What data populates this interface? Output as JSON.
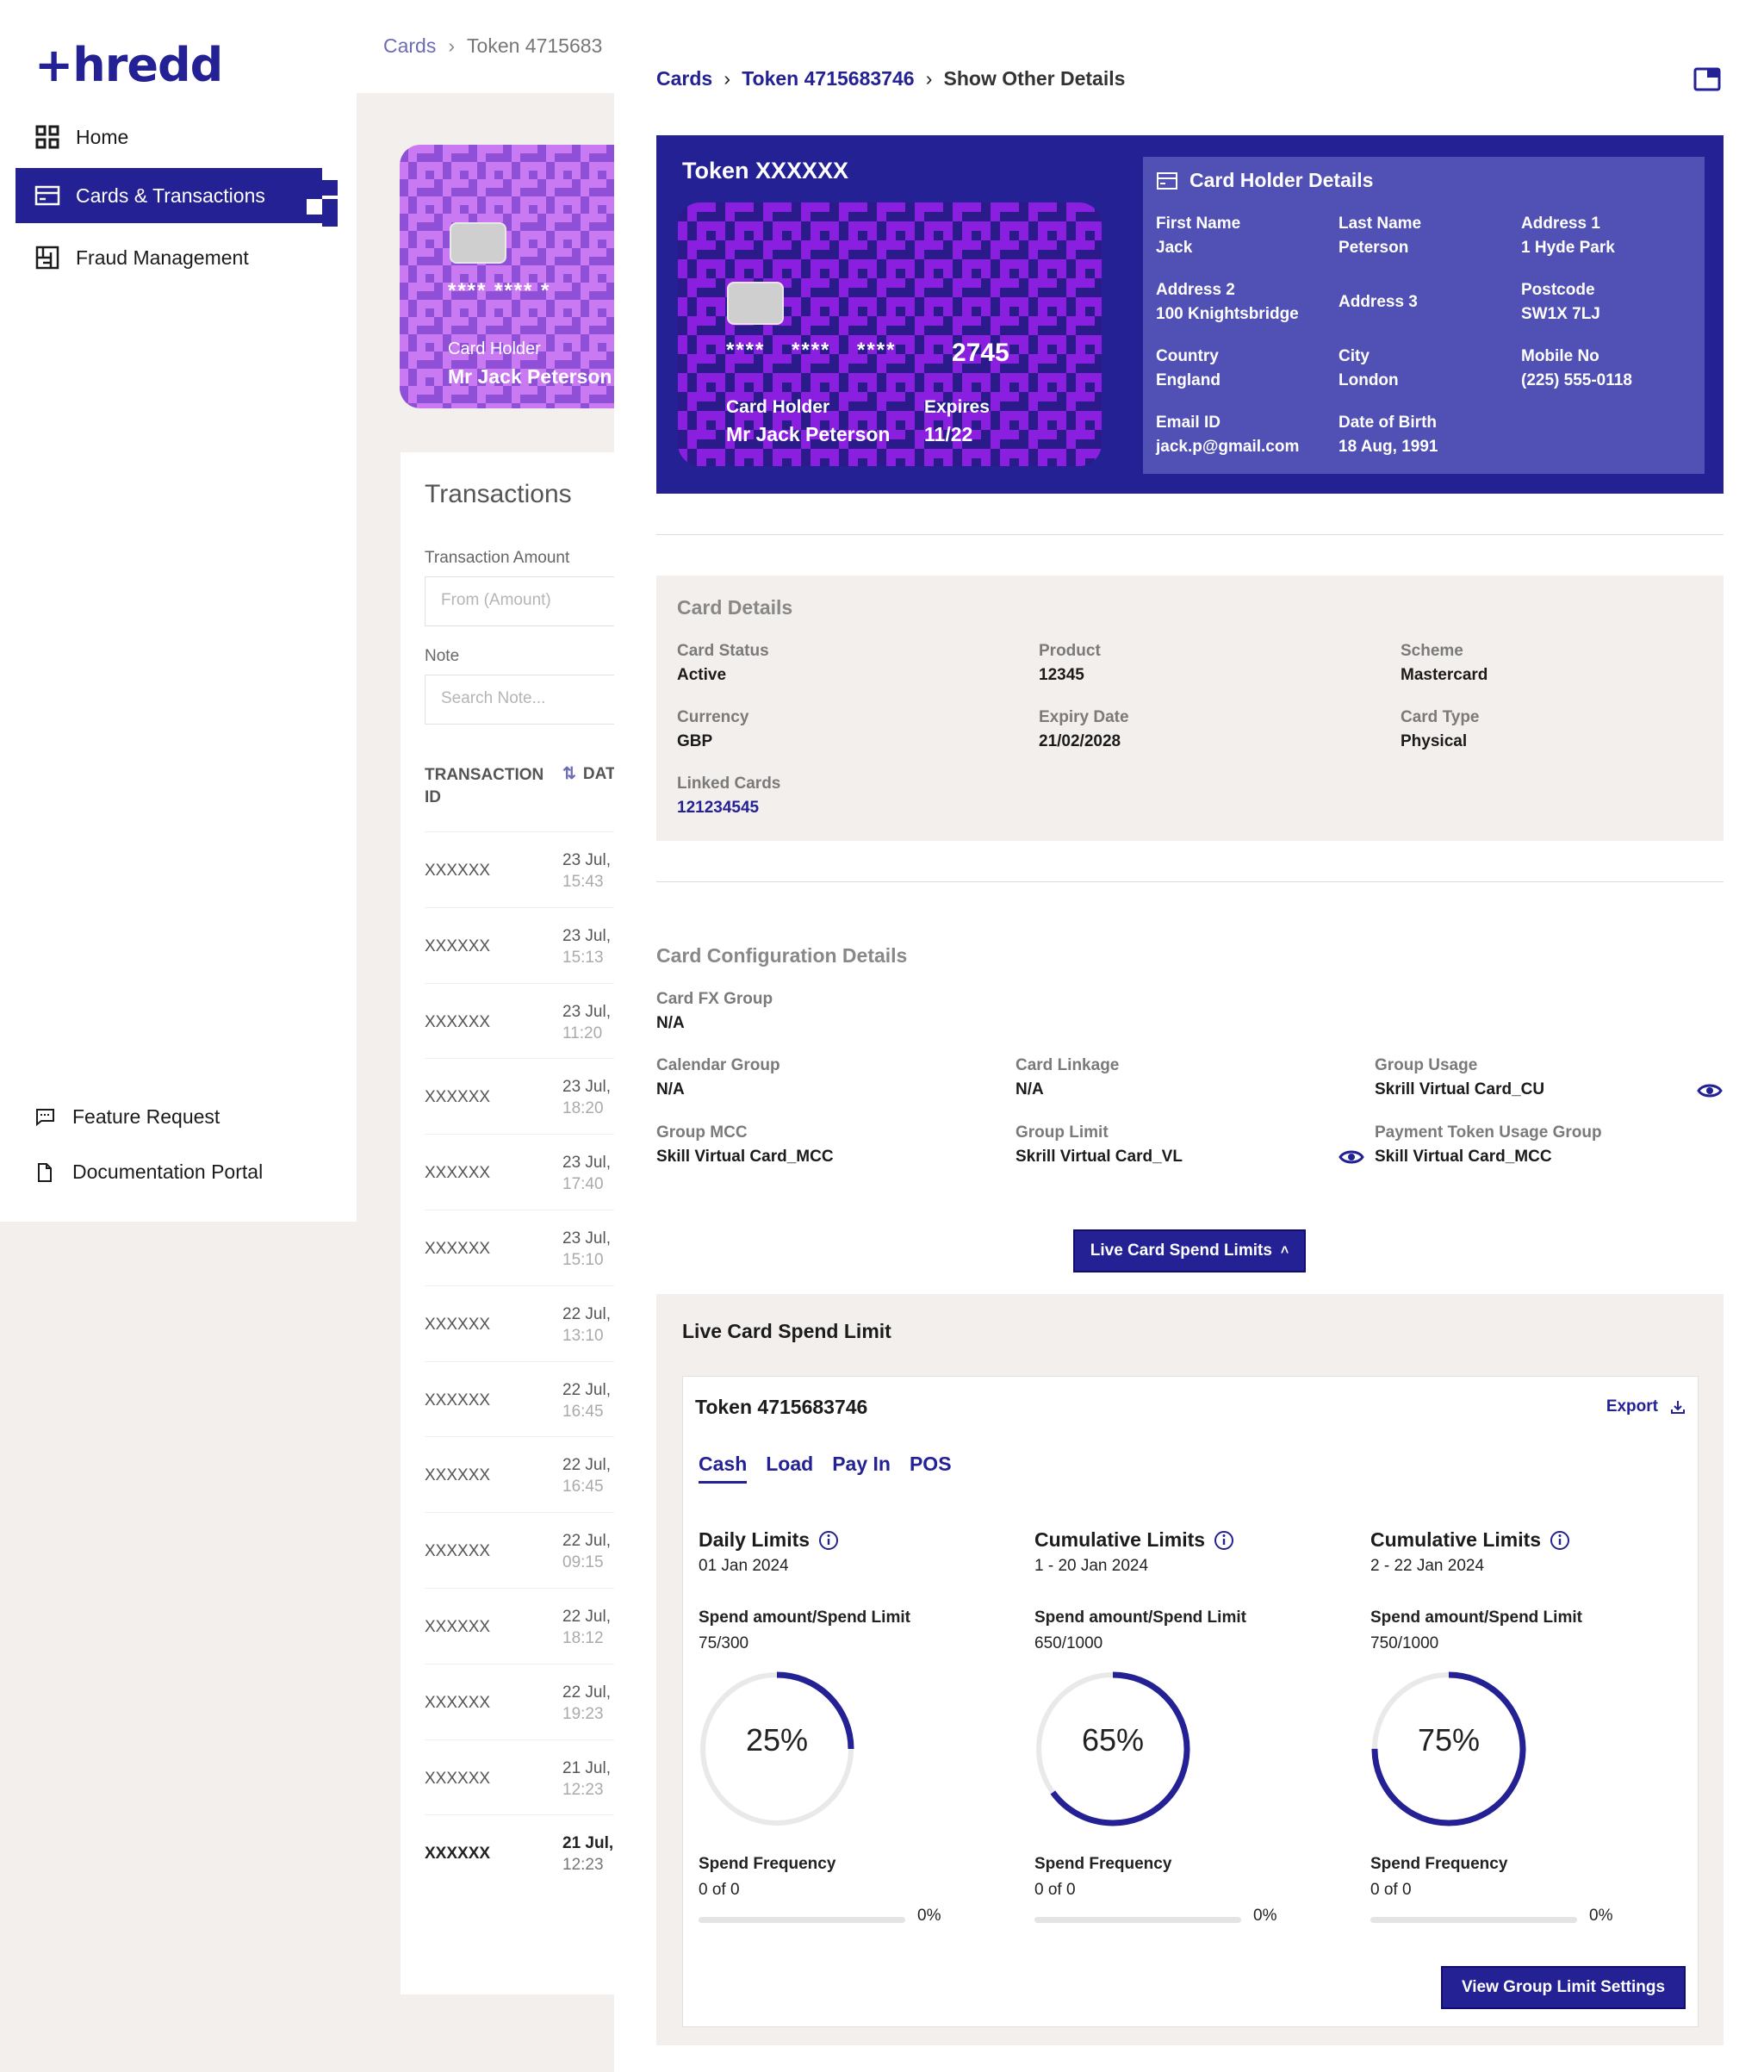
{
  "app": {
    "logo_text": "+hredd"
  },
  "sidebar": {
    "items": [
      {
        "label": "Home",
        "icon": "grid-icon"
      },
      {
        "label": "Cards & Transactions",
        "icon": "card-icon",
        "active": true
      },
      {
        "label": "Fraud Management",
        "icon": "fraud-icon"
      }
    ],
    "bottom": [
      {
        "label": "Feature Request",
        "icon": "feedback-icon"
      },
      {
        "label": "Documentation Portal",
        "icon": "document-icon"
      }
    ]
  },
  "background_page": {
    "breadcrumb": {
      "cards": "Cards",
      "token": "Token 4715683"
    },
    "card": {
      "stars": "****  ****  *",
      "holder_label": "Card Holder",
      "holder_name": "Mr Jack Peterson"
    },
    "transactions": {
      "title": "Transactions",
      "amount_label": "Transaction Amount",
      "amount_placeholder": "From (Amount)",
      "note_label": "Note",
      "note_placeholder": "Search Note...",
      "col_id": "TRANSACTION ID",
      "col_date": "DAT",
      "rows": [
        {
          "id": "XXXXXX",
          "date": "23 Jul,",
          "time": "15:43"
        },
        {
          "id": "XXXXXX",
          "date": "23 Jul,",
          "time": "15:13"
        },
        {
          "id": "XXXXXX",
          "date": "23 Jul,",
          "time": "11:20"
        },
        {
          "id": "XXXXXX",
          "date": "23 Jul,",
          "time": "18:20"
        },
        {
          "id": "XXXXXX",
          "date": "23 Jul,",
          "time": "17:40"
        },
        {
          "id": "XXXXXX",
          "date": "23 Jul,",
          "time": "15:10"
        },
        {
          "id": "XXXXXX",
          "date": "22 Jul,",
          "time": "13:10"
        },
        {
          "id": "XXXXXX",
          "date": "22 Jul,",
          "time": "16:45"
        },
        {
          "id": "XXXXXX",
          "date": "22 Jul,",
          "time": "16:45"
        },
        {
          "id": "XXXXXX",
          "date": "22 Jul,",
          "time": "09:15"
        },
        {
          "id": "XXXXXX",
          "date": "22 Jul,",
          "time": "18:12"
        },
        {
          "id": "XXXXXX",
          "date": "22 Jul,",
          "time": "19:23"
        },
        {
          "id": "XXXXXX",
          "date": "21 Jul,",
          "time": "12:23"
        },
        {
          "id": "XXXXXX",
          "date": "21 Jul,",
          "time": "12:23"
        }
      ]
    }
  },
  "drawer": {
    "breadcrumb": {
      "cards": "Cards",
      "token": "Token 4715683746",
      "current": "Show Other Details"
    },
    "hero": {
      "title": "Token XXXXXX",
      "card": {
        "stars": "****  ****  ****",
        "last4": "2745",
        "holder_label": "Card Holder",
        "holder_name": "Mr Jack Peterson",
        "expires_label": "Expires",
        "expires_value": "11/22"
      },
      "holder_details": {
        "title": "Card Holder Details",
        "fields": [
          {
            "label": "First Name",
            "value": "Jack"
          },
          {
            "label": "Last Name",
            "value": "Peterson"
          },
          {
            "label": "Address 1",
            "value": "1 Hyde Park"
          },
          {
            "label": "Address 2",
            "value": "100 Knightsbridge"
          },
          {
            "label": "Address 3",
            "value": ""
          },
          {
            "label": "Postcode",
            "value": "SW1X 7LJ"
          },
          {
            "label": "Country",
            "value": "England"
          },
          {
            "label": "City",
            "value": "London"
          },
          {
            "label": "Mobile No",
            "value": "(225) 555-0118"
          },
          {
            "label": "Email ID",
            "value": "jack.p@gmail.com"
          },
          {
            "label": "Date of Birth",
            "value": "18 Aug, 1991"
          }
        ]
      }
    },
    "card_details": {
      "title": "Card Details",
      "card_status": {
        "label": "Card Status",
        "value": "Active"
      },
      "product": {
        "label": "Product",
        "value": "12345"
      },
      "scheme": {
        "label": "Scheme",
        "value": "Mastercard"
      },
      "currency": {
        "label": "Currency",
        "value": "GBP"
      },
      "expiry_date": {
        "label": "Expiry Date",
        "value": "21/02/2028"
      },
      "card_type": {
        "label": "Card Type",
        "value": "Physical"
      },
      "linked_cards": {
        "label": "Linked Cards",
        "value": "121234545"
      }
    },
    "config": {
      "title": "Card Configuration Details",
      "fx_group": {
        "label": "Card FX Group",
        "value": "N/A"
      },
      "calendar_group": {
        "label": "Calendar Group",
        "value": "N/A"
      },
      "card_linkage": {
        "label": "Card Linkage",
        "value": "N/A"
      },
      "group_usage": {
        "label": "Group Usage",
        "value": "Skrill Virtual Card_CU"
      },
      "group_mcc": {
        "label": "Group MCC",
        "value": "Skill Virtual Card_MCC"
      },
      "group_limit": {
        "label": "Group Limit",
        "value": "Skrill Virtual Card_VL"
      },
      "payment_token_usage_group": {
        "label": "Payment Token Usage Group",
        "value": "Skill Virtual Card_MCC"
      }
    },
    "live_button": "Live Card Spend Limits",
    "live_panel": {
      "title": "Live Card Spend Limit",
      "token": "Token 4715683746",
      "export": "Export",
      "tabs": [
        "Cash",
        "Load",
        "Pay In",
        "POS"
      ],
      "active_tab": "Cash",
      "limits": [
        {
          "title": "Daily Limits",
          "period": "01 Jan 2024",
          "spend_label": "Spend amount/Spend Limit",
          "spend_value": "75/300",
          "percent": 25,
          "percent_text": "25%",
          "freq_label": "Spend Frequency",
          "freq_value": "0 of 0",
          "freq_percent": 0,
          "freq_text": "0%"
        },
        {
          "title": "Cumulative Limits",
          "period": "1 - 20 Jan 2024",
          "spend_label": "Spend amount/Spend Limit",
          "spend_value": "650/1000",
          "percent": 65,
          "percent_text": "65%",
          "freq_label": "Spend Frequency",
          "freq_value": "0 of 0",
          "freq_percent": 0,
          "freq_text": "0%"
        },
        {
          "title": "Cumulative Limits",
          "period": "2 - 22 Jan 2024",
          "spend_label": "Spend amount/Spend Limit",
          "spend_value": "750/1000",
          "percent": 75,
          "percent_text": "75%",
          "freq_label": "Spend Frequency",
          "freq_value": "0 of 0",
          "freq_percent": 0,
          "freq_text": "0%"
        }
      ],
      "view_group_button": "View Group Limit Settings"
    }
  },
  "colors": {
    "brand": "#232193",
    "brand_light": "#5150b5",
    "panel_bg": "#f3efec",
    "card_pattern_a": "#8a1fe0",
    "card_pattern_b": "#2a1a8a",
    "bg_card_pattern_a": "#c979f2",
    "bg_card_pattern_b": "#8f4fd6",
    "ring_track": "#e9e9e9"
  }
}
